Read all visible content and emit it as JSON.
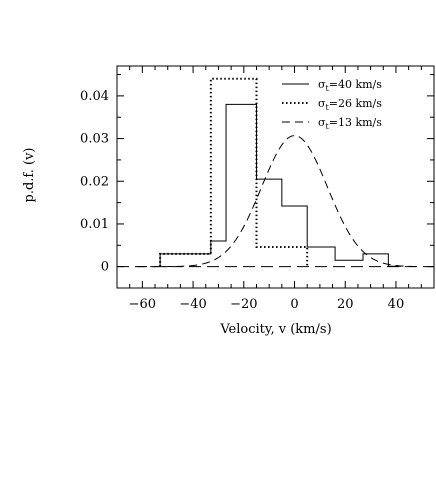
{
  "chart_data": {
    "type": "line",
    "xlabel": "Velocity, v (km/s)",
    "ylabel": "p.d.f. (v)",
    "xlim": [
      -70,
      55
    ],
    "ylim": [
      -0.005,
      0.047
    ],
    "x_ticks": [
      -60,
      -40,
      -20,
      0,
      20,
      40
    ],
    "x_tick_labels": [
      "−60",
      "−40",
      "−20",
      "0",
      "20",
      "40"
    ],
    "y_ticks": [
      0,
      0.01,
      0.02,
      0.03,
      0.04
    ],
    "y_tick_labels": [
      "0",
      "0.01",
      "0.02",
      "0.03",
      "0.04"
    ],
    "grid": false,
    "legend_position": "top-right",
    "series": [
      {
        "name": "σt=40 km/s",
        "legend_label": "=40  km/s",
        "style": "solid",
        "kind": "step",
        "edges": [
          -53,
          -43,
          -33,
          -27,
          -15,
          -5,
          5,
          16,
          27,
          37,
          42
        ],
        "values": [
          0.003,
          0.003,
          0.006,
          0.038,
          0.0205,
          0.0142,
          0.0046,
          0.0015,
          0.003,
          0.0001
        ]
      },
      {
        "name": "σt=26 km/s",
        "legend_label": "=26  km/s",
        "style": "dotted",
        "kind": "step",
        "edges": [
          -53,
          -33,
          -15,
          5
        ],
        "values": [
          0.003,
          0.044,
          0.0046
        ]
      },
      {
        "name": "σt=13 km/s",
        "legend_label": "=13  km/s",
        "style": "dashed",
        "kind": "gaussian",
        "mean": 0,
        "sigma": 13,
        "amplitude": 0.0307,
        "x_range": [
          -62,
          50
        ]
      }
    ],
    "legend_symbol": {
      "greek": "σ",
      "subscript": "t"
    }
  }
}
